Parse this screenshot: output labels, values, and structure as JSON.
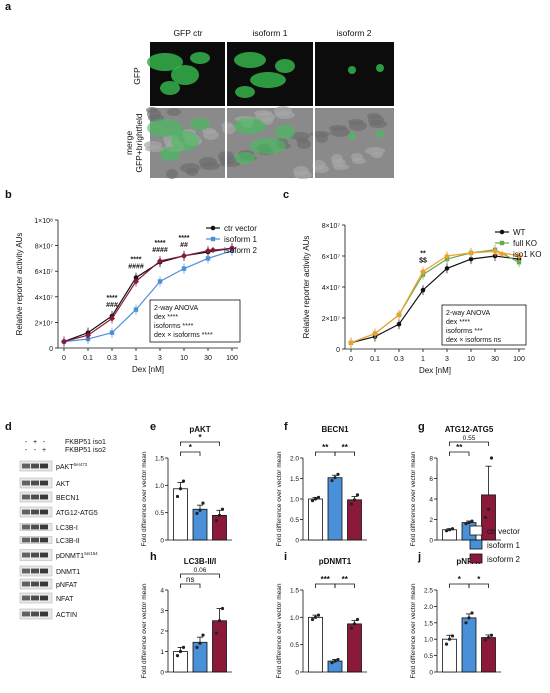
{
  "panel_letters": [
    "a",
    "b",
    "c",
    "d",
    "e",
    "f",
    "g",
    "h",
    "i",
    "j"
  ],
  "micro": {
    "columns": [
      "GFP ctr",
      "isoform 1",
      "isoform 2"
    ],
    "row_labels": [
      "GFP",
      "merge\nGFP+brightfield"
    ]
  },
  "legend_ej": [
    "ctr vector",
    "isoform 1",
    "isoform 2"
  ],
  "blot": {
    "header_signs": [
      [
        "-",
        "-"
      ],
      [
        "+",
        "-"
      ],
      [
        "-",
        "+"
      ]
    ],
    "header_labels": [
      "FKBP51 iso1",
      "FKBP51 iso2"
    ],
    "proteins": [
      "pAKT^Ser473",
      "AKT",
      "BECN1",
      "ATG12-ATG5",
      "LC3B-I",
      "LC3B-II",
      "pDNMT1^Ser154",
      "DNMT1",
      "pNFAT",
      "NFAT",
      "ACTIN"
    ]
  },
  "colors": {
    "ctr": "#ffffff",
    "iso1": "#4a90d9",
    "iso2": "#8b1a3a",
    "full_ko": "#6aa84f",
    "iso1_ko": "#f0a030",
    "wt": "#000000"
  },
  "chart_data": [
    {
      "panel": "b",
      "type": "line",
      "xlabel": "Dex [nM]",
      "ylabel": "Relative reporter activity AUs",
      "x": [
        "0",
        "0.1",
        "0.3",
        "1",
        "3",
        "10",
        "30",
        "100"
      ],
      "yticks": [
        "0",
        "2×10⁷",
        "4×10⁷",
        "6×10⁷",
        "8×10⁷",
        "1×10⁸"
      ],
      "ylim": [
        0,
        100000000
      ],
      "series": [
        {
          "name": "ctr vector",
          "values": [
            5000000,
            12000000,
            25000000,
            55000000,
            67000000,
            72000000,
            75000000,
            78000000
          ]
        },
        {
          "name": "isoform 1",
          "values": [
            5000000,
            7000000,
            12000000,
            30000000,
            52000000,
            62000000,
            70000000,
            76000000
          ]
        },
        {
          "name": "isoform 2",
          "values": [
            5000000,
            10000000,
            23000000,
            52000000,
            68000000,
            72000000,
            76000000,
            78000000
          ]
        }
      ],
      "annotations": [
        {
          "at": "0.3",
          "text": [
            "****",
            "###"
          ]
        },
        {
          "at": "1",
          "text": [
            "****",
            "####"
          ]
        },
        {
          "at": "3",
          "text": [
            "****",
            "####"
          ]
        },
        {
          "at": "10",
          "text": [
            "****",
            "##"
          ]
        }
      ],
      "stats": [
        "2-way ANOVA",
        "dex ****",
        "isoforms ****",
        "dex × isoforms ****"
      ]
    },
    {
      "panel": "c",
      "type": "line",
      "xlabel": "Dex [nM]",
      "ylabel": "Relative reporter activity AUs",
      "x": [
        "0",
        "0.1",
        "0.3",
        "1",
        "3",
        "10",
        "30",
        "100"
      ],
      "yticks": [
        "0",
        "2×10⁷",
        "4×10⁷",
        "6×10⁷",
        "8×10⁷"
      ],
      "ylim": [
        0,
        80000000
      ],
      "series": [
        {
          "name": "WT",
          "values": [
            4000000,
            8000000,
            16000000,
            38000000,
            52000000,
            58000000,
            60000000,
            58000000
          ]
        },
        {
          "name": "full KO",
          "values": [
            4000000,
            10000000,
            22000000,
            48000000,
            58000000,
            62000000,
            64000000,
            56000000
          ]
        },
        {
          "name": "iso1 KO",
          "values": [
            4000000,
            10000000,
            22000000,
            50000000,
            60000000,
            62000000,
            63000000,
            60000000
          ]
        }
      ],
      "annotations": [
        {
          "at": "1",
          "text": [
            "**",
            "$$"
          ]
        }
      ],
      "stats": [
        "2-way ANOVA",
        "dex ****",
        "isoforms ***",
        "dex × isoforms ns"
      ]
    },
    {
      "panel": "e",
      "type": "bar",
      "title": "pAKT",
      "ylabel": "Fold difference over vector mean",
      "categories": [
        "ctr vector",
        "isoform 1",
        "isoform 2"
      ],
      "values": [
        1.0,
        0.6,
        0.48
      ],
      "errors": [
        0.12,
        0.08,
        0.1
      ],
      "yticks": [
        "0",
        "0.5",
        "1.0",
        "1.5"
      ],
      "ylim": [
        0,
        1.6
      ],
      "points": [
        [
          0.85,
          1.0,
          1.15
        ],
        [
          0.52,
          0.58,
          0.72
        ],
        [
          0.38,
          0.48,
          0.6
        ]
      ],
      "sig": [
        {
          "from": 0,
          "to": 1,
          "text": "*"
        },
        {
          "from": 0,
          "to": 2,
          "text": "*"
        }
      ]
    },
    {
      "panel": "f",
      "type": "bar",
      "title": "BECN1",
      "ylabel": "Fold difference over vector mean",
      "categories": [
        "ctr vector",
        "isoform 1",
        "isoform 2"
      ],
      "values": [
        1.0,
        1.52,
        0.98
      ],
      "errors": [
        0.04,
        0.06,
        0.08
      ],
      "yticks": [
        "0",
        "0.5",
        "1.0",
        "1.5",
        "2.0"
      ],
      "ylim": [
        0,
        2.0
      ],
      "points": [
        [
          0.96,
          1.0,
          1.04
        ],
        [
          1.45,
          1.52,
          1.6
        ],
        [
          0.88,
          0.98,
          1.1
        ]
      ],
      "sig": [
        {
          "from": 0,
          "to": 1,
          "text": "**"
        },
        {
          "from": 1,
          "to": 2,
          "text": "**"
        }
      ]
    },
    {
      "panel": "g",
      "type": "bar",
      "title": "ATG12-ATG5",
      "ylabel": "Fold difference over vector mean",
      "categories": [
        "ctr vector",
        "isoform 1",
        "isoform 2"
      ],
      "values": [
        1.0,
        1.7,
        4.4
      ],
      "errors": [
        0.1,
        0.15,
        2.8
      ],
      "yticks": [
        "0",
        "2",
        "4",
        "6",
        "8"
      ],
      "ylim": [
        0,
        8
      ],
      "points": [
        [
          0.9,
          1.0,
          1.1
        ],
        [
          1.6,
          1.7,
          1.85
        ],
        [
          2.2,
          3.0,
          8.0
        ]
      ],
      "sig": [
        {
          "from": 0,
          "to": 1,
          "text": "**"
        },
        {
          "from": 0,
          "to": 2,
          "text": "0.55"
        }
      ]
    },
    {
      "panel": "h",
      "type": "bar",
      "title": "LC3B-II/I",
      "ylabel": "Fold difference over vector mean",
      "categories": [
        "ctr vector",
        "isoform 1",
        "isoform 2"
      ],
      "values": [
        1.0,
        1.45,
        2.5
      ],
      "errors": [
        0.2,
        0.25,
        0.6
      ],
      "yticks": [
        "0",
        "1",
        "2",
        "3",
        "4"
      ],
      "ylim": [
        0,
        4
      ],
      "points": [
        [
          0.8,
          1.0,
          1.2
        ],
        [
          1.2,
          1.4,
          1.8
        ],
        [
          1.9,
          2.5,
          3.1
        ]
      ],
      "sig": [
        {
          "from": 0,
          "to": 1,
          "text": "ns"
        },
        {
          "from": 0,
          "to": 2,
          "text": "0.06"
        }
      ]
    },
    {
      "panel": "i",
      "type": "bar",
      "title": "pDNMT1",
      "ylabel": "Fold difference over vector mean",
      "categories": [
        "ctr vector",
        "isoform 1",
        "isoform 2"
      ],
      "values": [
        1.0,
        0.2,
        0.88
      ],
      "errors": [
        0.04,
        0.03,
        0.06
      ],
      "yticks": [
        "0",
        "0.5",
        "1.0",
        "1.5"
      ],
      "ylim": [
        0,
        1.5
      ],
      "points": [
        [
          0.96,
          1.0,
          1.04
        ],
        [
          0.17,
          0.2,
          0.23
        ],
        [
          0.8,
          0.88,
          0.96
        ]
      ],
      "sig": [
        {
          "from": 0,
          "to": 1,
          "text": "***"
        },
        {
          "from": 1,
          "to": 2,
          "text": "**"
        }
      ]
    },
    {
      "panel": "j",
      "type": "bar",
      "title": "pNFAT",
      "ylabel": "Fold difference over vector mean",
      "categories": [
        "ctr vector",
        "isoform 1",
        "isoform 2"
      ],
      "values": [
        1.0,
        1.65,
        1.05
      ],
      "errors": [
        0.12,
        0.12,
        0.08
      ],
      "yticks": [
        "0",
        "0.5",
        "1.0",
        "1.5",
        "2.0",
        "2.5"
      ],
      "ylim": [
        0,
        2.5
      ],
      "points": [
        [
          0.85,
          1.0,
          1.1
        ],
        [
          1.5,
          1.65,
          1.8
        ],
        [
          0.98,
          1.05,
          1.12
        ]
      ],
      "sig": [
        {
          "from": 0,
          "to": 1,
          "text": "*"
        },
        {
          "from": 1,
          "to": 2,
          "text": "*"
        }
      ]
    }
  ]
}
